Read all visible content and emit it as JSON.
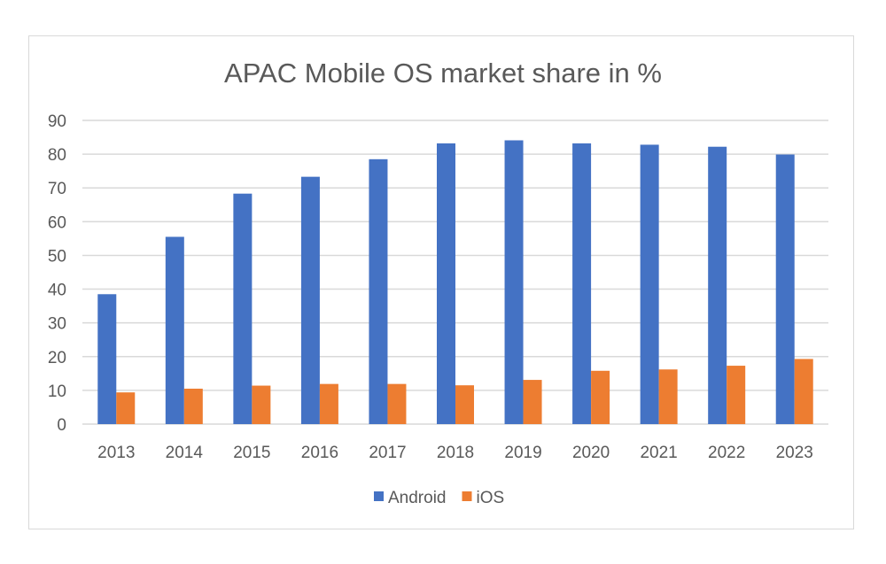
{
  "chart_data": {
    "type": "bar",
    "title": "APAC Mobile OS market share in %",
    "xlabel": "",
    "ylabel": "",
    "categories": [
      "2013",
      "2014",
      "2015",
      "2016",
      "2017",
      "2018",
      "2019",
      "2020",
      "2021",
      "2022",
      "2023"
    ],
    "series": [
      {
        "name": "Android",
        "color": "#4472c4",
        "values": [
          38.5,
          55.5,
          68.3,
          73.3,
          78.5,
          83.2,
          84.1,
          83.2,
          82.8,
          82.2,
          79.9
        ]
      },
      {
        "name": "iOS",
        "color": "#ed7d31",
        "values": [
          9.4,
          10.5,
          11.4,
          11.9,
          11.9,
          11.5,
          13.1,
          15.8,
          16.2,
          17.3,
          19.3
        ]
      }
    ],
    "ylim": [
      0,
      90
    ],
    "yticks": [
      0,
      10,
      20,
      30,
      40,
      50,
      60,
      70,
      80,
      90
    ],
    "grid": true,
    "legend_position": "bottom"
  }
}
